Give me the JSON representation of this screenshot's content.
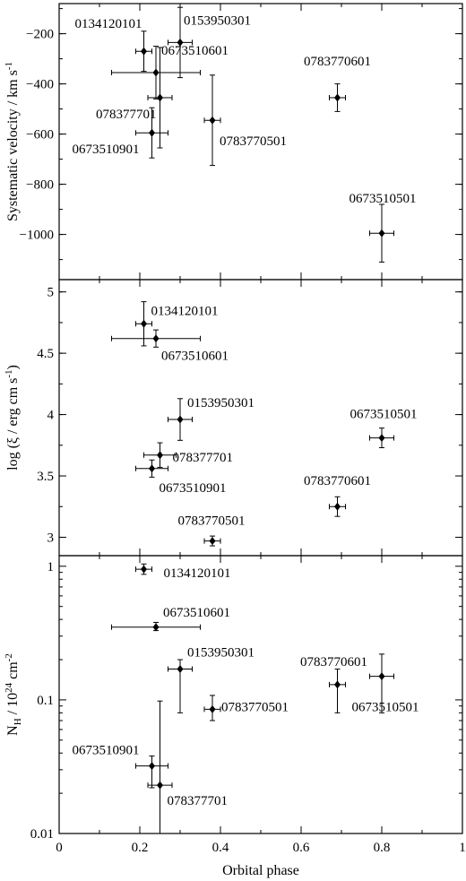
{
  "chart_data": [
    {
      "type": "scatter",
      "ylabel": "Systematic velocity / km s",
      "ylabel_sup": "-1",
      "ylim": [
        -1180,
        -80
      ],
      "yticks": [
        -1000,
        -800,
        -600,
        -400,
        -200
      ],
      "yticklabels": [
        "−1000",
        "−800",
        "−600",
        "−400",
        "−200"
      ],
      "points": [
        {
          "label": "0134120101",
          "x": 0.21,
          "y": -270,
          "xerr": 0.02,
          "yerr": 80
        },
        {
          "label": "0153950301",
          "x": 0.3,
          "y": -235,
          "xerr": 0.03,
          "yerr": 140
        },
        {
          "label": "0673510601",
          "x": 0.24,
          "y": -355,
          "xerr": 0.11,
          "yerr": 105
        },
        {
          "label": "078377701",
          "x": 0.25,
          "y": -455,
          "xerr": 0.03,
          "yerr": 200
        },
        {
          "label": "0673510901",
          "x": 0.23,
          "y": -595,
          "xerr": 0.04,
          "yerr": 100
        },
        {
          "label": "0783770501",
          "x": 0.38,
          "y": -545,
          "xerr": 0.02,
          "yerr": 180
        },
        {
          "label": "0783770601",
          "x": 0.69,
          "y": -455,
          "xerr": 0.02,
          "yerr": 55
        },
        {
          "label": "0673510501",
          "x": 0.8,
          "y": -995,
          "xerr": 0.03,
          "yerr": 115
        }
      ]
    },
    {
      "type": "scatter",
      "ylabel": "log (ξ / erg cm s",
      "ylabel_sup": "-1",
      "ylabel_end": ")",
      "ylim": [
        2.85,
        5.1
      ],
      "yticks": [
        3,
        3.5,
        4,
        4.5,
        5
      ],
      "yticklabels": [
        "3",
        "3.5",
        "4",
        "4.5",
        "5"
      ],
      "points": [
        {
          "label": "0134120101",
          "x": 0.21,
          "y": 4.74,
          "xerr": 0.02,
          "yerr": 0.18
        },
        {
          "label": "0673510601",
          "x": 0.24,
          "y": 4.62,
          "xerr": 0.11,
          "yerr": 0.07
        },
        {
          "label": "0153950301",
          "x": 0.3,
          "y": 3.96,
          "xerr": 0.03,
          "yerr": 0.17
        },
        {
          "label": "078377701",
          "x": 0.25,
          "y": 3.67,
          "xerr": 0.04,
          "yerr": 0.1
        },
        {
          "label": "0673510901",
          "x": 0.23,
          "y": 3.56,
          "xerr": 0.04,
          "yerr": 0.07
        },
        {
          "label": "0673510501",
          "x": 0.8,
          "y": 3.81,
          "xerr": 0.03,
          "yerr": 0.08
        },
        {
          "label": "0783770601",
          "x": 0.69,
          "y": 3.25,
          "xerr": 0.02,
          "yerr": 0.08
        },
        {
          "label": "0783770501",
          "x": 0.38,
          "y": 2.97,
          "xerr": 0.02,
          "yerr": 0.04
        }
      ]
    },
    {
      "type": "scatter",
      "yscale": "log",
      "ylabel": "N",
      "ylabel_sub": "H",
      "ylabel_mid": " / 10",
      "ylabel_sup": "24",
      "ylabel_end": " cm",
      "ylabel_sup2": "-2",
      "ylim": [
        0.01,
        1.2
      ],
      "yticks": [
        0.01,
        0.1,
        1
      ],
      "yticklabels": [
        "0.01",
        "0.1",
        "1"
      ],
      "xlabel": "Orbital phase",
      "xlim": [
        0,
        1
      ],
      "xticks": [
        0,
        0.2,
        0.4,
        0.6,
        0.8,
        1
      ],
      "xticklabels": [
        "0",
        "0.2",
        "0.4",
        "0.6",
        "0.8",
        "1"
      ],
      "points": [
        {
          "label": "0134120101",
          "x": 0.21,
          "y": 0.95,
          "xerr": 0.02,
          "ylo": 0.87,
          "yhi": 1.04
        },
        {
          "label": "0673510601",
          "x": 0.24,
          "y": 0.35,
          "xerr": 0.11,
          "ylo": 0.33,
          "yhi": 0.38
        },
        {
          "label": "0153950301",
          "x": 0.3,
          "y": 0.17,
          "xerr": 0.03,
          "ylo": 0.08,
          "yhi": 0.2
        },
        {
          "label": "0783770501",
          "x": 0.38,
          "y": 0.085,
          "xerr": 0.02,
          "ylo": 0.07,
          "yhi": 0.108
        },
        {
          "label": "0783770601",
          "x": 0.69,
          "y": 0.13,
          "xerr": 0.02,
          "ylo": 0.08,
          "yhi": 0.17
        },
        {
          "label": "0673510501",
          "x": 0.8,
          "y": 0.15,
          "xerr": 0.03,
          "ylo": 0.08,
          "yhi": 0.22
        },
        {
          "label": "0673510901",
          "x": 0.23,
          "y": 0.032,
          "xerr": 0.04,
          "ylo": 0.022,
          "yhi": 0.038
        },
        {
          "label": "078377701",
          "x": 0.25,
          "y": 0.023,
          "xerr": 0.03,
          "ylo": 0.0095,
          "yhi": 0.098
        }
      ]
    }
  ]
}
